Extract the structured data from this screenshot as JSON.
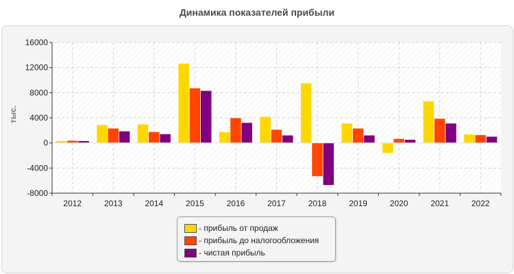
{
  "chart_data": {
    "type": "bar",
    "title": "Динамика показателей прибыли",
    "ylabel": "тыс.",
    "xlabel": "",
    "categories": [
      "2012",
      "2013",
      "2014",
      "2015",
      "2016",
      "2017",
      "2018",
      "2019",
      "2020",
      "2021",
      "2022"
    ],
    "ylim": [
      -8000,
      16000
    ],
    "yticks": [
      -8000,
      -4000,
      0,
      4000,
      8000,
      12000,
      16000
    ],
    "series": [
      {
        "name": "- прибыль от продаж",
        "color": "#ffd700",
        "values": [
          300,
          2850,
          2950,
          12650,
          1700,
          4150,
          9500,
          3100,
          -1600,
          6650,
          1350
        ]
      },
      {
        "name": "- прибыль до налогообложения",
        "color": "#ff4500",
        "values": [
          350,
          2300,
          1750,
          8700,
          3950,
          2100,
          -5300,
          2300,
          650,
          3850,
          1250
        ]
      },
      {
        "name": "- чистая прибыль",
        "color": "#800080",
        "values": [
          300,
          1850,
          1400,
          8300,
          3200,
          1200,
          -6700,
          1200,
          500,
          3100,
          1000
        ]
      }
    ],
    "grid": true,
    "legend_position": "bottom"
  }
}
